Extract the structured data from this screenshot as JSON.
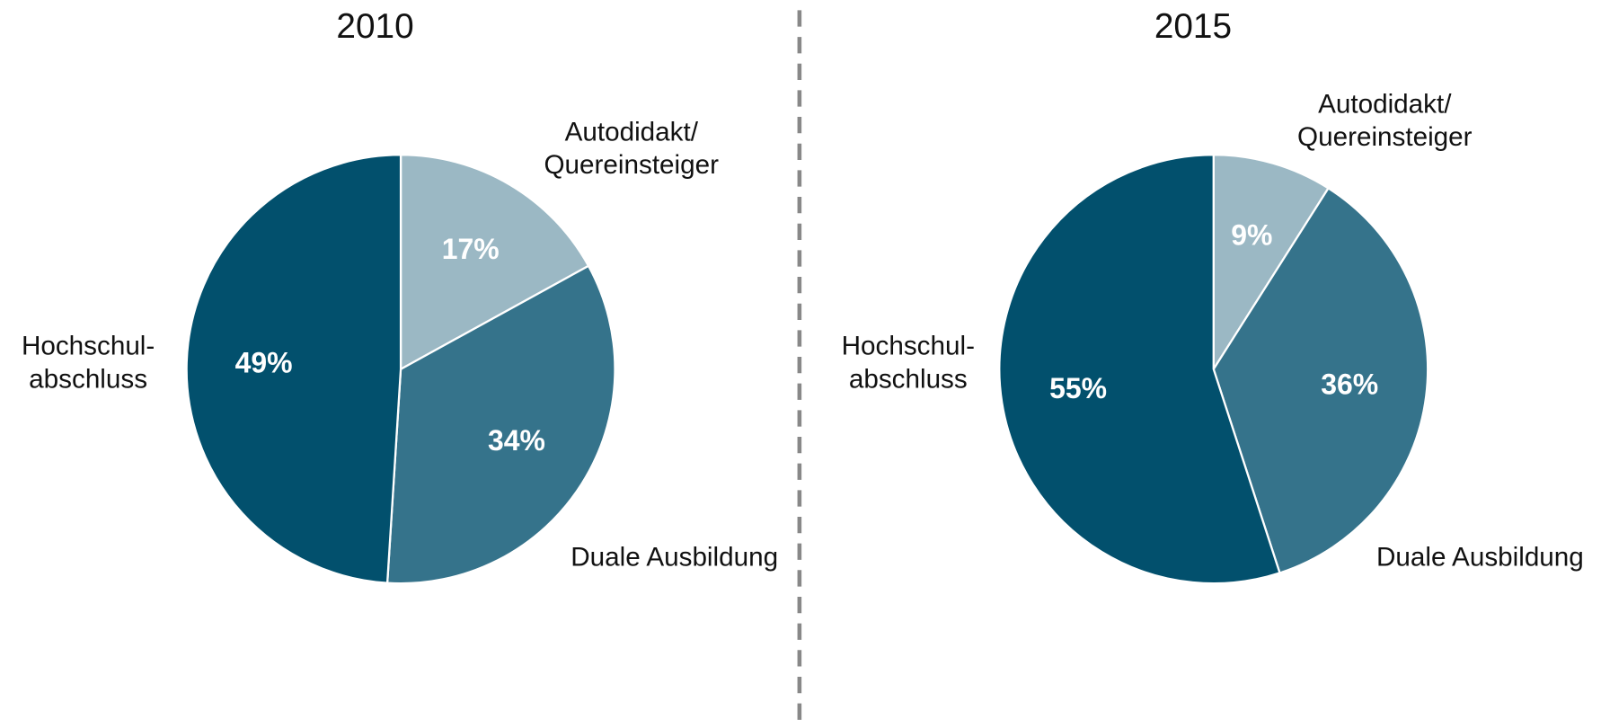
{
  "chart_data": [
    {
      "type": "pie",
      "title": "2010",
      "categories": [
        "Autodidakt/\nQuereinsteiger",
        "Duale Ausbildung",
        "Hochschul-\nabschluss"
      ],
      "values": [
        17,
        34,
        49
      ],
      "value_labels": [
        "17%",
        "34%",
        "49%"
      ],
      "colors": [
        "#9bb8c4",
        "#35738b",
        "#02506d"
      ]
    },
    {
      "type": "pie",
      "title": "2015",
      "categories": [
        "Autodidakt/\nQuereinsteiger",
        "Duale Ausbildung",
        "Hochschul-\nabschluss"
      ],
      "values": [
        9,
        36,
        55
      ],
      "value_labels": [
        "9%",
        "36%",
        "55%"
      ],
      "colors": [
        "#9bb8c4",
        "#35738b",
        "#02506d"
      ]
    }
  ]
}
